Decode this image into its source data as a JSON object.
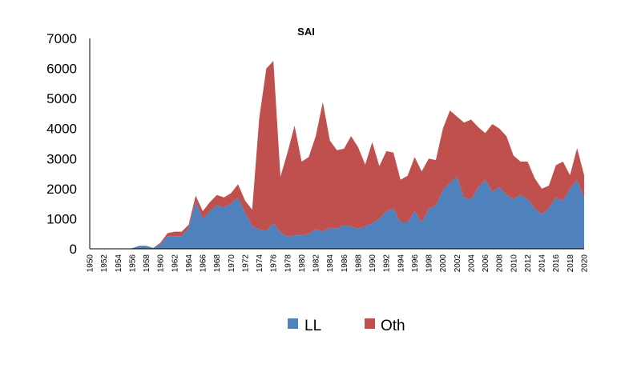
{
  "chart_data": {
    "type": "area",
    "stacked": true,
    "title": "SAI",
    "xlabel": "",
    "ylabel": "",
    "ylim": [
      0,
      7000
    ],
    "yticks": [
      0,
      1000,
      2000,
      3000,
      4000,
      5000,
      6000,
      7000
    ],
    "xticks": [
      1950,
      1952,
      1954,
      1956,
      1958,
      1960,
      1962,
      1964,
      1966,
      1968,
      1970,
      1972,
      1974,
      1976,
      1978,
      1980,
      1982,
      1984,
      1986,
      1988,
      1990,
      1992,
      1994,
      1996,
      1998,
      2000,
      2002,
      2004,
      2006,
      2008,
      2010,
      2012,
      2014,
      2016,
      2018,
      2020
    ],
    "grid": false,
    "legend_position": "bottom",
    "x": [
      1950,
      1951,
      1952,
      1953,
      1954,
      1955,
      1956,
      1957,
      1958,
      1959,
      1960,
      1961,
      1962,
      1963,
      1964,
      1965,
      1966,
      1967,
      1968,
      1969,
      1970,
      1971,
      1972,
      1973,
      1974,
      1975,
      1976,
      1977,
      1978,
      1979,
      1980,
      1981,
      1982,
      1983,
      1984,
      1985,
      1986,
      1987,
      1988,
      1989,
      1990,
      1991,
      1992,
      1993,
      1994,
      1995,
      1996,
      1997,
      1998,
      1999,
      2000,
      2001,
      2002,
      2003,
      2004,
      2005,
      2006,
      2007,
      2008,
      2009,
      2010,
      2011,
      2012,
      2013,
      2014,
      2015,
      2016,
      2017,
      2018,
      2019,
      2020
    ],
    "series": [
      {
        "name": "LL",
        "color": "#4F81BD",
        "values": [
          0,
          0,
          0,
          0,
          0,
          0,
          20,
          100,
          100,
          20,
          150,
          420,
          420,
          420,
          700,
          1550,
          1000,
          1250,
          1450,
          1380,
          1500,
          1700,
          1200,
          750,
          650,
          600,
          850,
          550,
          400,
          450,
          450,
          500,
          650,
          580,
          700,
          680,
          780,
          750,
          680,
          750,
          850,
          1000,
          1250,
          1350,
          880,
          880,
          1250,
          880,
          1330,
          1450,
          1950,
          2200,
          2400,
          1700,
          1650,
          2050,
          2300,
          1900,
          2050,
          1800,
          1650,
          1800,
          1650,
          1350,
          1150,
          1350,
          1700,
          1600,
          2000,
          2300,
          1700
        ]
      },
      {
        "name": "Oth",
        "color": "#C0504D",
        "values": [
          0,
          0,
          0,
          0,
          0,
          0,
          0,
          0,
          0,
          10,
          50,
          100,
          150,
          150,
          100,
          220,
          250,
          300,
          340,
          330,
          350,
          450,
          400,
          550,
          3700,
          5400,
          5400,
          1850,
          2800,
          3650,
          2450,
          2550,
          3100,
          4300,
          2900,
          2600,
          2550,
          3000,
          2700,
          2050,
          2700,
          1750,
          2000,
          1850,
          1420,
          1550,
          1800,
          1700,
          1670,
          1500,
          2050,
          2400,
          2000,
          2500,
          2650,
          2000,
          1550,
          2250,
          1950,
          1950,
          1450,
          1100,
          1250,
          1000,
          850,
          750,
          1080,
          1300,
          450,
          1050,
          750
        ]
      }
    ]
  },
  "legend": {
    "items": [
      {
        "label": "LL",
        "color": "#4F81BD"
      },
      {
        "label": "Oth",
        "color": "#C0504D"
      }
    ]
  }
}
